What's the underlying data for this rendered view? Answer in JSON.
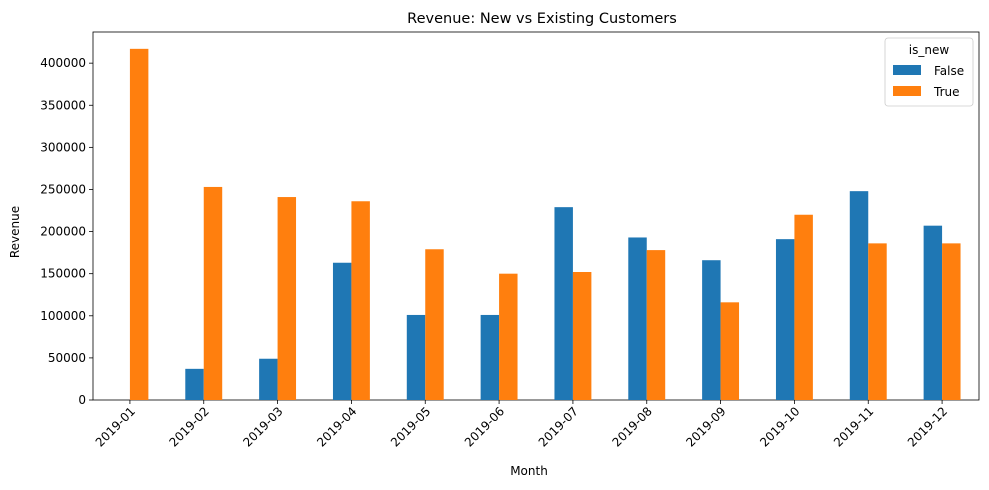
{
  "chart_data": {
    "type": "bar",
    "title": "Revenue: New vs Existing Customers",
    "xlabel": "Month",
    "ylabel": "Revenue",
    "categories": [
      "2019-01",
      "2019-02",
      "2019-03",
      "2019-04",
      "2019-05",
      "2019-06",
      "2019-07",
      "2019-08",
      "2019-09",
      "2019-10",
      "2019-11",
      "2019-12"
    ],
    "series": [
      {
        "name": "False",
        "color": "#1f77b4",
        "values": [
          0,
          37000,
          49000,
          163000,
          101000,
          101000,
          229000,
          193000,
          166000,
          191000,
          248000,
          207000
        ]
      },
      {
        "name": "True",
        "color": "#ff7f0e",
        "values": [
          417000,
          253000,
          241000,
          236000,
          179000,
          150000,
          152000,
          178000,
          116000,
          220000,
          186000,
          186000
        ]
      }
    ],
    "ylim": [
      0,
      437000
    ],
    "yticks": [
      0,
      50000,
      100000,
      150000,
      200000,
      250000,
      300000,
      350000,
      400000
    ],
    "ytick_labels": [
      "0",
      "50000",
      "100000",
      "150000",
      "200000",
      "250000",
      "300000",
      "350000",
      "400000"
    ],
    "legend": {
      "title": "is_new",
      "position": "top-right"
    },
    "grid": false
  }
}
